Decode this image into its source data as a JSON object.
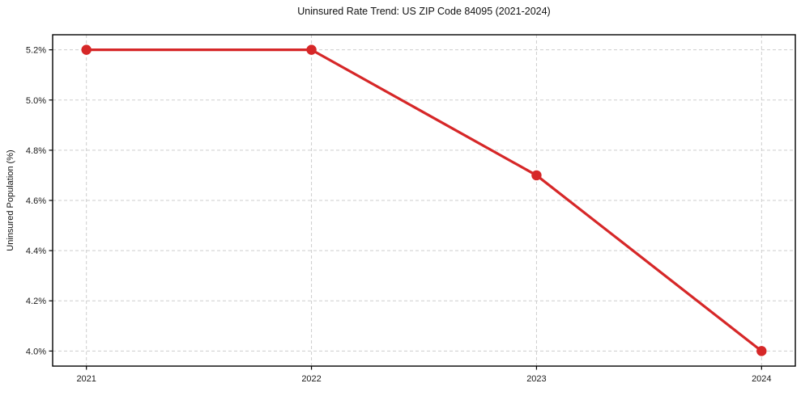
{
  "page": {
    "background": "#ffffff"
  },
  "chart_data": {
    "type": "line",
    "title": "Uninsured Rate Trend: US ZIP Code 84095 (2021-2024)",
    "xlabel": "",
    "ylabel": "Uninsured Population (%)",
    "x": [
      2021,
      2022,
      2023,
      2024
    ],
    "series": [
      {
        "name": "Uninsured rate",
        "values": [
          5.2,
          5.2,
          4.7,
          4.0
        ],
        "color": "#d62728",
        "marker": "circle"
      }
    ],
    "xticks": [
      2021,
      2022,
      2023,
      2024
    ],
    "xtick_labels": [
      "2021",
      "2022",
      "2023",
      "2024"
    ],
    "yticks": [
      4.0,
      4.2,
      4.4,
      4.6,
      4.8,
      5.0,
      5.2
    ],
    "ytick_labels": [
      "4.0%",
      "4.2%",
      "4.4%",
      "4.6%",
      "4.8%",
      "5.0%",
      "5.2%"
    ],
    "xlim": [
      2020.85,
      2024.15
    ],
    "ylim": [
      3.94,
      5.26
    ],
    "grid": true,
    "grid_style": "dashed",
    "grid_color": "#cdcdcd",
    "axis_color": "#000000",
    "text_color": "#1a1a1a",
    "legend_position": "none"
  }
}
